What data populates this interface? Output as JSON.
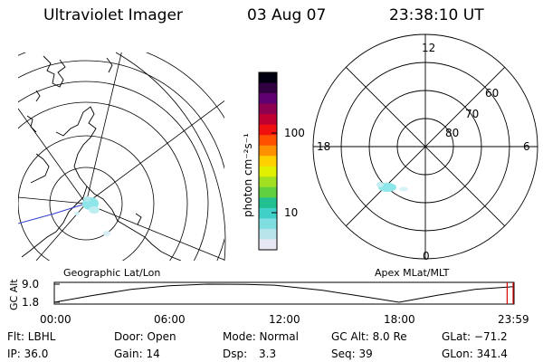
{
  "header": {
    "instrument": "Ultraviolet Imager",
    "date": "03 Aug 07",
    "time": "23:38:10 UT"
  },
  "geographic_panel": {
    "label": "Geographic Lat/Lon"
  },
  "polar_panel": {
    "label": "Apex MLat/MLT",
    "mlt_labels": [
      "12",
      "18",
      "6",
      "0"
    ],
    "mlat_labels": [
      "60",
      "70",
      "80"
    ]
  },
  "colorbar": {
    "unit_label": "photon cm⁻²s⁻¹",
    "tick_labels": [
      "100",
      "10"
    ],
    "scale": "log",
    "colors": [
      "#e8e8f4",
      "#b8e4ec",
      "#7fdfe0",
      "#40d0c8",
      "#20c090",
      "#60d040",
      "#a0e020",
      "#e0f000",
      "#ffd000",
      "#ff9000",
      "#ff5000",
      "#f01010",
      "#c00030",
      "#900050",
      "#600070",
      "#300040",
      "#000010"
    ]
  },
  "altitude_plot": {
    "ylabel": "GC Alt",
    "y_ticks": [
      "9.0",
      "1.8"
    ],
    "x_ticks": [
      "00:00",
      "06:00",
      "12:00",
      "18:00",
      "23:59"
    ]
  },
  "chart_data": {
    "type": "line",
    "title": "",
    "xlabel": "",
    "ylabel": "GC Alt",
    "x_unit": "hours UT",
    "ylim": [
      1.8,
      9.0
    ],
    "xlim": [
      0,
      24
    ],
    "series": [
      {
        "x": [
          0,
          2,
          4,
          6,
          8,
          10,
          11.5,
          14,
          16,
          18,
          20,
          22,
          23.98
        ],
        "values": [
          1.8,
          4.5,
          6.9,
          8.4,
          9.0,
          8.9,
          8.6,
          6.6,
          4.2,
          1.8,
          4.6,
          7.0,
          8.0
        ]
      }
    ],
    "current_time": 23.64
  },
  "footer": {
    "row1": {
      "flt": "Flt: LBHL",
      "door": "Door: Open",
      "mode": "Mode: Normal",
      "gcalt": "GC Alt: 8.0 Re",
      "glat": "GLat: −71.2"
    },
    "row2": {
      "ip": "IP: 36.0",
      "gain": "Gain: 14",
      "dsp_label": "Dsp:",
      "dsp_value": "3.3",
      "seq": "Seq: 39",
      "glon": "GLon: 341.4"
    }
  }
}
